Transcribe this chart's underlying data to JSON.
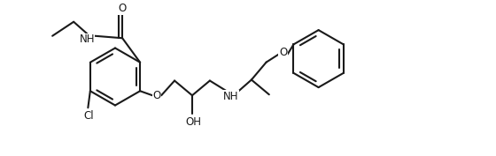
{
  "bg": "#ffffff",
  "lc": "#1a1a1a",
  "lw": 1.5,
  "fs": 8.5,
  "fig_w": 5.6,
  "fig_h": 1.77,
  "dpi": 100,
  "xlim": [
    0,
    11.2
  ],
  "ylim": [
    0,
    3.54
  ]
}
